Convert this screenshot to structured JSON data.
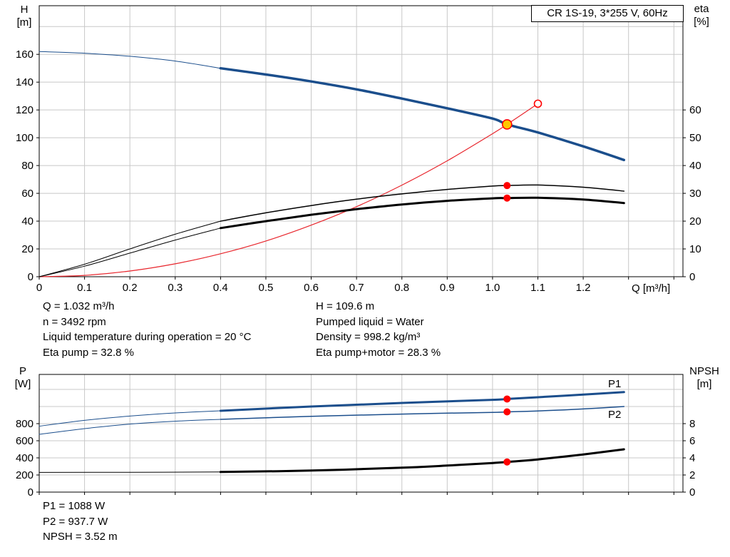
{
  "title_box": {
    "label": "CR 1S-19, 3*255 V, 60Hz"
  },
  "axis_labels": {
    "top_left_1": "H",
    "top_left_2": "[m]",
    "top_right_1": "eta",
    "top_right_2": "[%]",
    "bottom_left_1": "P",
    "bottom_left_2": "[W]",
    "bottom_right_1": "NPSH",
    "bottom_right_2": "[m]",
    "x_axis": "Q [m³/h]"
  },
  "curve_labels": {
    "p1": "P1",
    "p2": "P2"
  },
  "info_left": [
    "Q = 1.032 m³/h",
    "n = 3492 rpm",
    "Liquid temperature during operation = 20 °C",
    "Eta pump = 32.8 %"
  ],
  "info_right": [
    "H = 109.6 m",
    "Pumped liquid = Water",
    "Density = 998.2 kg/m³",
    "Eta pump+motor = 28.3 %"
  ],
  "info_bottom": [
    "P1 = 1088 W",
    "P2 = 937.7 W",
    "NPSH = 3.52 m"
  ],
  "colors": {
    "blue": "#1b4e8c",
    "red": "#e8262d",
    "point_red": "#ff0000",
    "yellow": "#ffc800",
    "black": "#000000",
    "grid": "#c8c8c8",
    "white": "#ffffff"
  },
  "chart_data": [
    {
      "name": "head-efficiency-chart",
      "type": "line",
      "title": "CR 1S-19, 3*255 V, 60Hz",
      "xlabel": "Q [m³/h]",
      "ylabel_left": "H [m]",
      "ylabel_right": "eta [%]",
      "xlim": [
        0,
        1.42
      ],
      "ylim_left": [
        0,
        195
      ],
      "ylim_right": [
        0,
        97.5
      ],
      "x_ticks": [
        {
          "v": 0,
          "label": "0"
        },
        {
          "v": 0.1,
          "label": "0.1"
        },
        {
          "v": 0.2,
          "label": "0.2"
        },
        {
          "v": 0.3,
          "label": "0.3"
        },
        {
          "v": 0.4,
          "label": "0.4"
        },
        {
          "v": 0.5,
          "label": "0.5"
        },
        {
          "v": 0.6,
          "label": "0.6"
        },
        {
          "v": 0.7,
          "label": "0.7"
        },
        {
          "v": 0.8,
          "label": "0.8"
        },
        {
          "v": 0.9,
          "label": "0.9"
        },
        {
          "v": 1.0,
          "label": "1.0"
        },
        {
          "v": 1.1,
          "label": "1.1"
        },
        {
          "v": 1.2,
          "label": "1.2"
        },
        {
          "v": 1.3,
          "label": ""
        },
        {
          "v": 1.4,
          "label": ""
        }
      ],
      "y_ticks_left": [
        {
          "v": 0,
          "label": "0"
        },
        {
          "v": 20,
          "label": "20"
        },
        {
          "v": 40,
          "label": "40"
        },
        {
          "v": 60,
          "label": "60"
        },
        {
          "v": 80,
          "label": "80"
        },
        {
          "v": 100,
          "label": "100"
        },
        {
          "v": 120,
          "label": "120"
        },
        {
          "v": 140,
          "label": "140"
        },
        {
          "v": 160,
          "label": "160"
        },
        {
          "v": 180,
          "label": ""
        }
      ],
      "y_ticks_right": [
        {
          "v": 0,
          "label": "0"
        },
        {
          "v": 10,
          "label": "10"
        },
        {
          "v": 20,
          "label": "20"
        },
        {
          "v": 30,
          "label": "30"
        },
        {
          "v": 40,
          "label": "40"
        },
        {
          "v": 50,
          "label": "50"
        },
        {
          "v": 60,
          "label": "60"
        }
      ],
      "series": [
        {
          "name": "h-curve-leadin",
          "axis": "left",
          "color": "blue",
          "width": 1,
          "x": [
            0,
            0.1,
            0.2,
            0.3,
            0.4
          ],
          "y": [
            162,
            160.8,
            158.6,
            155.2,
            150
          ]
        },
        {
          "name": "h-curve",
          "axis": "left",
          "color": "blue",
          "width": 3.5,
          "x": [
            0.4,
            0.5,
            0.6,
            0.7,
            0.8,
            0.9,
            1.0,
            1.032,
            1.1,
            1.2,
            1.29
          ],
          "y": [
            150,
            145.5,
            140.5,
            134.8,
            128.2,
            121.2,
            113.8,
            109.6,
            103.8,
            93.8,
            84
          ]
        },
        {
          "name": "system-curve",
          "axis": "left",
          "color": "red",
          "width": 1.2,
          "x": [
            0,
            0.1,
            0.2,
            0.3,
            0.4,
            0.5,
            0.6,
            0.7,
            0.8,
            0.9,
            1.0,
            1.032,
            1.1
          ],
          "y": [
            0,
            1.0,
            4.1,
            9.3,
            16.5,
            25.7,
            37.1,
            50.4,
            65.9,
            83.4,
            102.9,
            109.6,
            124.5
          ]
        },
        {
          "name": "eta-pump-leadin",
          "axis": "right",
          "color": "black",
          "width": 1,
          "x": [
            0,
            0.1,
            0.2,
            0.3,
            0.4
          ],
          "y": [
            0,
            4.5,
            10,
            15.3,
            20
          ]
        },
        {
          "name": "eta-pump",
          "axis": "right",
          "color": "black",
          "width": 1.5,
          "x": [
            0.4,
            0.5,
            0.6,
            0.7,
            0.8,
            0.9,
            1.0,
            1.032,
            1.1,
            1.2,
            1.29
          ],
          "y": [
            20,
            23,
            25.6,
            27.9,
            29.8,
            31.4,
            32.6,
            32.8,
            33.0,
            32.2,
            30.8
          ]
        },
        {
          "name": "eta-pump-motor-leadin",
          "axis": "right",
          "color": "black",
          "width": 1,
          "x": [
            0,
            0.1,
            0.2,
            0.3,
            0.4
          ],
          "y": [
            0,
            3.8,
            8.5,
            13.2,
            17.5
          ]
        },
        {
          "name": "eta-pump-motor",
          "axis": "right",
          "color": "black",
          "width": 3,
          "x": [
            0.4,
            0.5,
            0.6,
            0.7,
            0.8,
            0.9,
            1.0,
            1.032,
            1.1,
            1.2,
            1.29
          ],
          "y": [
            17.5,
            20,
            22.3,
            24.3,
            26,
            27.3,
            28.2,
            28.3,
            28.4,
            27.8,
            26.5
          ]
        }
      ],
      "points": [
        {
          "name": "duty-point",
          "x": 1.032,
          "y": 109.6,
          "axis": "left",
          "r": 6.5,
          "fill": "yellow",
          "stroke": "point_red"
        },
        {
          "name": "system-curve-end-point",
          "x": 1.1,
          "y": 124.5,
          "axis": "left",
          "r": 5,
          "fill": "white",
          "stroke": "point_red"
        },
        {
          "name": "eta-pump-point",
          "x": 1.032,
          "y": 32.8,
          "axis": "right",
          "r": 5,
          "fill": "point_red"
        },
        {
          "name": "eta-pump-motor-point",
          "x": 1.032,
          "y": 28.3,
          "axis": "right",
          "r": 5,
          "fill": "point_red"
        }
      ]
    },
    {
      "name": "power-npsh-chart",
      "type": "line",
      "title": "",
      "xlabel": "Q [m³/h]",
      "ylabel_left": "P [W]",
      "ylabel_right": "NPSH [m]",
      "xlim": [
        0,
        1.42
      ],
      "ylim_left": [
        0,
        1375
      ],
      "ylim_right": [
        0,
        13.75
      ],
      "x_ticks": [
        {
          "v": 0,
          "label": ""
        },
        {
          "v": 0.1,
          "label": ""
        },
        {
          "v": 0.2,
          "label": ""
        },
        {
          "v": 0.3,
          "label": ""
        },
        {
          "v": 0.4,
          "label": ""
        },
        {
          "v": 0.5,
          "label": ""
        },
        {
          "v": 0.6,
          "label": ""
        },
        {
          "v": 0.7,
          "label": ""
        },
        {
          "v": 0.8,
          "label": ""
        },
        {
          "v": 0.9,
          "label": ""
        },
        {
          "v": 1.0,
          "label": ""
        },
        {
          "v": 1.1,
          "label": ""
        },
        {
          "v": 1.2,
          "label": ""
        },
        {
          "v": 1.3,
          "label": ""
        },
        {
          "v": 1.4,
          "label": ""
        }
      ],
      "y_ticks_left": [
        {
          "v": 0,
          "label": "0"
        },
        {
          "v": 200,
          "label": "200"
        },
        {
          "v": 400,
          "label": "400"
        },
        {
          "v": 600,
          "label": "600"
        },
        {
          "v": 800,
          "label": "800"
        },
        {
          "v": 1000,
          "label": ""
        },
        {
          "v": 1200,
          "label": ""
        }
      ],
      "y_ticks_right": [
        {
          "v": 0,
          "label": "0"
        },
        {
          "v": 2,
          "label": "2"
        },
        {
          "v": 4,
          "label": "4"
        },
        {
          "v": 6,
          "label": "6"
        },
        {
          "v": 8,
          "label": "8"
        }
      ],
      "series": [
        {
          "name": "p1-leadin",
          "axis": "left",
          "color": "blue",
          "width": 1,
          "x": [
            0,
            0.1,
            0.2,
            0.3,
            0.4
          ],
          "y": [
            770,
            838,
            888,
            925,
            950
          ]
        },
        {
          "name": "p1-curve",
          "axis": "left",
          "color": "blue",
          "width": 3,
          "x": [
            0.4,
            0.6,
            0.8,
            1.0,
            1.032,
            1.1,
            1.2,
            1.29
          ],
          "y": [
            950,
            1000,
            1042,
            1078,
            1088,
            1108,
            1140,
            1168
          ]
        },
        {
          "name": "p2-leadin",
          "axis": "left",
          "color": "blue",
          "width": 1,
          "x": [
            0,
            0.1,
            0.2,
            0.3,
            0.4
          ],
          "y": [
            675,
            742,
            795,
            828,
            850
          ]
        },
        {
          "name": "p2-curve",
          "axis": "left",
          "color": "blue",
          "width": 1.5,
          "x": [
            0.4,
            0.6,
            0.8,
            1.0,
            1.032,
            1.1,
            1.2,
            1.29
          ],
          "y": [
            850,
            886,
            912,
            932,
            937.7,
            948,
            972,
            1000
          ]
        },
        {
          "name": "npsh-leadin",
          "axis": "right",
          "color": "black",
          "width": 1,
          "x": [
            0,
            0.2,
            0.4
          ],
          "y": [
            2.3,
            2.32,
            2.35
          ]
        },
        {
          "name": "npsh-curve",
          "axis": "right",
          "color": "black",
          "width": 3,
          "x": [
            0.4,
            0.6,
            0.8,
            0.9,
            1.0,
            1.032,
            1.1,
            1.2,
            1.29
          ],
          "y": [
            2.35,
            2.52,
            2.85,
            3.1,
            3.4,
            3.52,
            3.82,
            4.4,
            5.0
          ]
        }
      ],
      "points": [
        {
          "name": "p1-point",
          "x": 1.032,
          "y": 1088,
          "axis": "left",
          "r": 5,
          "fill": "point_red"
        },
        {
          "name": "p2-point",
          "x": 1.032,
          "y": 937.7,
          "axis": "left",
          "r": 5,
          "fill": "point_red"
        },
        {
          "name": "npsh-point",
          "x": 1.032,
          "y": 3.52,
          "axis": "right",
          "r": 5,
          "fill": "point_red"
        }
      ]
    }
  ]
}
